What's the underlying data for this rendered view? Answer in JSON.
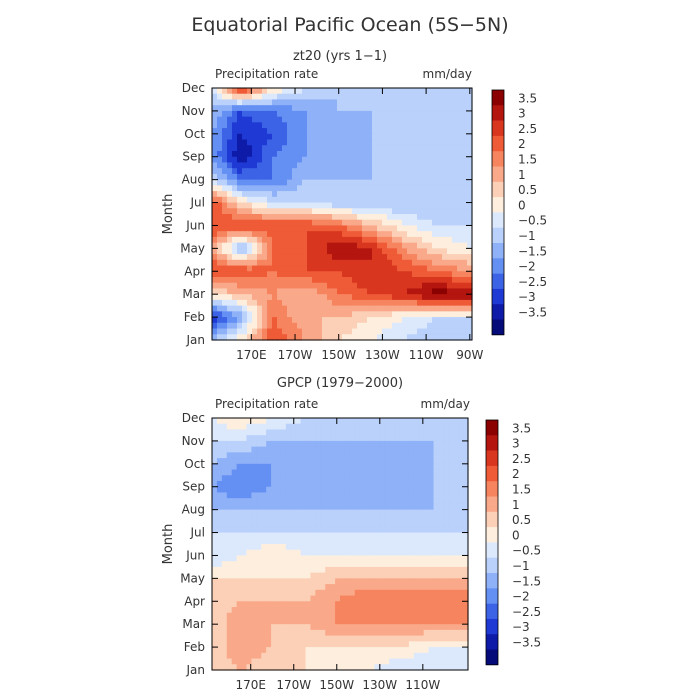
{
  "figure": {
    "title": "Equatorial Pacific Ocean (5S−5N)"
  },
  "colors": {
    "levels": [
      {
        "label": "3.5",
        "color": "#8b0000"
      },
      {
        "label": "3",
        "color": "#b4150f"
      },
      {
        "label": "2.5",
        "color": "#d8361f"
      },
      {
        "label": "2",
        "color": "#ef5a37"
      },
      {
        "label": "1.5",
        "color": "#f6845f"
      },
      {
        "label": "1",
        "color": "#f9a98a"
      },
      {
        "label": "0.5",
        "color": "#fcd0b7"
      },
      {
        "label": "0",
        "color": "#fdeede"
      },
      {
        "label": "−0.5",
        "color": "#dce9fc"
      },
      {
        "label": "−1",
        "color": "#b9d1fb"
      },
      {
        "label": "−1.5",
        "color": "#8fb1f8"
      },
      {
        "label": "−2",
        "color": "#6590f3"
      },
      {
        "label": "−2.5",
        "color": "#3c63e6"
      },
      {
        "label": "−3",
        "color": "#1f3ad4"
      },
      {
        "label": "−3.5",
        "color": "#0e1aa8"
      },
      {
        "label": "",
        "color": "#050b78"
      }
    ]
  },
  "chart_data": [
    {
      "type": "heatmap",
      "title": "zt20 (yrs 1−1)",
      "field_label": "Precipitation rate",
      "units": "mm/day",
      "ylabel": "Month",
      "y_categories": [
        "Jan",
        "Feb",
        "Mar",
        "Apr",
        "May",
        "Jun",
        "Jul",
        "Aug",
        "Sep",
        "Oct",
        "Nov",
        "Dec"
      ],
      "x_ticks": [
        "170E",
        "170W",
        "150W",
        "130W",
        "110W",
        "90W"
      ],
      "x_range_deg_east": [
        152,
        271
      ],
      "x_tick_positions_deg_east": [
        170,
        190,
        210,
        230,
        250,
        270
      ],
      "colorbar_labels": [
        "3.5",
        "3",
        "2.5",
        "2",
        "1.5",
        "1",
        "0.5",
        "0",
        "−0.5",
        "−1",
        "−1.5",
        "−2",
        "−2.5",
        "−3",
        "−3.5"
      ],
      "grid_x_deg_east": [
        152,
        165,
        180,
        195,
        210,
        225,
        240,
        255,
        270
      ],
      "values": [
        [
          -1.0,
          0.3,
          2.5,
          1.5,
          0.5,
          0.0,
          -0.5,
          -1.0,
          -1.0
        ],
        [
          -3.0,
          -1.5,
          2.0,
          1.0,
          1.0,
          0.5,
          0.0,
          -0.5,
          -0.5
        ],
        [
          0.5,
          1.0,
          1.5,
          1.0,
          2.0,
          2.5,
          3.0,
          3.8,
          3.5
        ],
        [
          2.5,
          2.5,
          2.0,
          2.5,
          2.5,
          3.0,
          2.5,
          2.0,
          1.5
        ],
        [
          1.5,
          -1.5,
          2.0,
          2.5,
          3.5,
          3.0,
          1.5,
          0.5,
          0.0
        ],
        [
          2.5,
          2.5,
          2.5,
          2.5,
          2.0,
          1.0,
          0.0,
          -0.5,
          -0.5
        ],
        [
          2.5,
          0.5,
          -0.5,
          -0.5,
          -1.0,
          -1.0,
          -1.0,
          -1.0,
          -1.0
        ],
        [
          -0.5,
          -2.0,
          -2.0,
          -1.0,
          -1.0,
          -1.0,
          -1.0,
          -1.0,
          -1.0
        ],
        [
          -1.5,
          -3.5,
          -2.0,
          -1.5,
          -1.5,
          -1.0,
          -1.0,
          -1.0,
          -1.0
        ],
        [
          -1.5,
          -3.0,
          -2.5,
          -1.5,
          -1.5,
          -1.0,
          -1.0,
          -1.0,
          -1.0
        ],
        [
          -1.0,
          -2.5,
          -2.0,
          -1.5,
          -1.0,
          -1.0,
          -1.0,
          -1.0,
          -1.0
        ],
        [
          -0.5,
          3.0,
          0.5,
          -0.5,
          -1.0,
          -1.0,
          -1.0,
          -1.0,
          -1.0
        ]
      ]
    },
    {
      "type": "heatmap",
      "title": "GPCP (1979−2000)",
      "field_label": "Precipitation rate",
      "units": "mm/day",
      "ylabel": "Month",
      "y_categories": [
        "Jan",
        "Feb",
        "Mar",
        "Apr",
        "May",
        "Jun",
        "Jul",
        "Aug",
        "Sep",
        "Oct",
        "Nov",
        "Dec"
      ],
      "x_ticks": [
        "170E",
        "170W",
        "150W",
        "130W",
        "110W"
      ],
      "x_range_deg_east": [
        152,
        271
      ],
      "x_tick_positions_deg_east": [
        170,
        190,
        210,
        230,
        250
      ],
      "colorbar_labels": [
        "3.5",
        "3",
        "2.5",
        "2",
        "1.5",
        "1",
        "0.5",
        "0",
        "−0.5",
        "−1",
        "−1.5",
        "−2",
        "−2.5",
        "−3",
        "−3.5"
      ],
      "grid_x_deg_east": [
        152,
        165,
        180,
        195,
        210,
        225,
        240,
        255,
        270
      ],
      "values": [
        [
          0.5,
          1.0,
          0.5,
          0.5,
          0.0,
          0.0,
          -0.5,
          -0.5,
          -0.5
        ],
        [
          0.5,
          1.5,
          1.0,
          0.5,
          0.5,
          0.5,
          0.5,
          0.0,
          0.0
        ],
        [
          0.5,
          1.5,
          1.0,
          1.0,
          1.5,
          1.5,
          1.5,
          1.5,
          1.5
        ],
        [
          0.5,
          1.0,
          1.0,
          1.0,
          1.5,
          2.0,
          2.0,
          2.0,
          2.0
        ],
        [
          0.5,
          0.5,
          0.5,
          0.5,
          1.0,
          1.0,
          1.0,
          1.0,
          1.0
        ],
        [
          -0.5,
          0.0,
          0.5,
          0.0,
          0.0,
          0.0,
          0.0,
          0.0,
          0.0
        ],
        [
          -0.5,
          -0.5,
          -0.5,
          -0.5,
          -0.5,
          -0.5,
          -0.5,
          -0.5,
          -0.5
        ],
        [
          -1.0,
          -1.0,
          -1.0,
          -1.0,
          -1.0,
          -1.0,
          -1.0,
          -1.0,
          -1.0
        ],
        [
          -1.5,
          -2.0,
          -1.5,
          -1.0,
          -1.5,
          -1.5,
          -1.5,
          -1.0,
          -1.0
        ],
        [
          -1.0,
          -1.5,
          -1.5,
          -1.0,
          -1.5,
          -1.5,
          -1.5,
          -1.0,
          -1.0
        ],
        [
          -0.5,
          -0.5,
          -1.0,
          -1.0,
          -1.0,
          -1.0,
          -1.0,
          -1.0,
          -1.0
        ],
        [
          0.0,
          0.5,
          0.0,
          -0.5,
          -0.5,
          -0.5,
          -0.5,
          -0.5,
          -0.5
        ]
      ]
    }
  ]
}
